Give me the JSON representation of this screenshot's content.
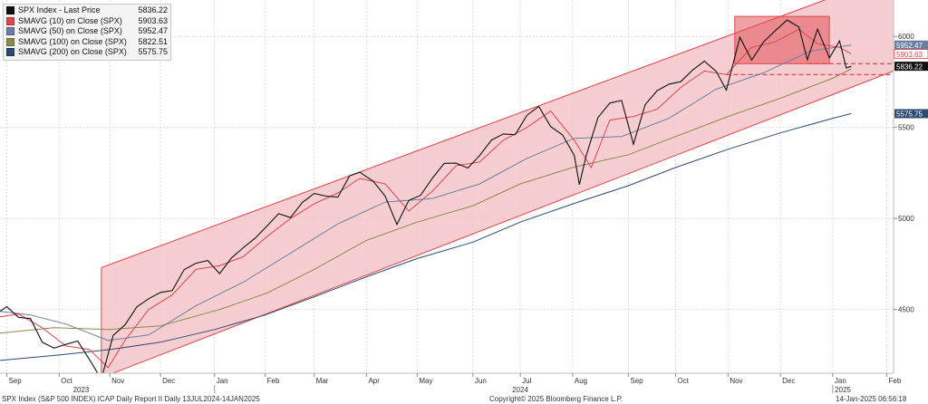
{
  "chart_data": {
    "type": "line",
    "title": "",
    "xlabel": "",
    "ylabel": "",
    "ylim": [
      4150,
      6200
    ],
    "x_range": [
      "2023-08-28",
      "2025-02-07"
    ],
    "grid": true,
    "legend_position": "top-left",
    "y_ticks": [
      4500,
      5000,
      5500,
      6000
    ],
    "x_ticks": [
      {
        "label": "Sep",
        "date": "2023-09-01"
      },
      {
        "label": "Oct",
        "date": "2023-10-02"
      },
      {
        "label": "Nov",
        "date": "2023-11-01"
      },
      {
        "label": "Dec",
        "date": "2023-12-01"
      },
      {
        "label": "Jan",
        "date": "2024-01-02"
      },
      {
        "label": "Feb",
        "date": "2024-02-01"
      },
      {
        "label": "Mar",
        "date": "2024-03-01"
      },
      {
        "label": "Apr",
        "date": "2024-04-01"
      },
      {
        "label": "May",
        "date": "2024-05-01"
      },
      {
        "label": "Jun",
        "date": "2024-06-03"
      },
      {
        "label": "Jul",
        "date": "2024-07-01"
      },
      {
        "label": "Aug",
        "date": "2024-08-01"
      },
      {
        "label": "Sep",
        "date": "2024-09-03"
      },
      {
        "label": "Oct",
        "date": "2024-10-01"
      },
      {
        "label": "Nov",
        "date": "2024-11-01"
      },
      {
        "label": "Dec",
        "date": "2024-12-02"
      },
      {
        "label": "Jan",
        "date": "2025-01-02"
      },
      {
        "label": "Feb",
        "date": "2025-02-03"
      }
    ],
    "year_labels": [
      {
        "label": "2023",
        "date": "2023-10-15"
      },
      {
        "label": "2024",
        "date": "2024-07-01"
      },
      {
        "label": "2025",
        "date": "2025-01-08"
      }
    ],
    "legend": [
      {
        "name": "SPX Index - Last Price",
        "value": "5836.22",
        "color": "#111111"
      },
      {
        "name": "SMAVG (10)  on Close (SPX)",
        "value": "5903.63",
        "color": "#e0454b"
      },
      {
        "name": "SMAVG (50)  on Close (SPX)",
        "value": "5952.47",
        "color": "#6a7f9e"
      },
      {
        "name": "SMAVG (100)  on Close (SPX)",
        "value": "5822.51",
        "color": "#8a8a4a"
      },
      {
        "name": "SMAVG (200)  on Close (SPX)",
        "value": "5575.75",
        "color": "#2d4a73"
      }
    ],
    "value_tags": [
      {
        "value": "5952.47",
        "y": 5952.47,
        "bg": "#6a7f9e",
        "fg": "#ffffff"
      },
      {
        "value": "5903.63",
        "y": 5903.63,
        "bg": "#ffffff",
        "fg": "#e0454b",
        "border": "#e0454b"
      },
      {
        "value": "5836.22",
        "y": 5836.22,
        "bg": "#111111",
        "fg": "#ffffff"
      },
      {
        "value": "5575.75",
        "y": 5575.75,
        "bg": "#2d4a73",
        "fg": "#ffffff"
      }
    ],
    "channel": {
      "upper": [
        {
          "x": "2023-10-27",
          "y": 4730
        },
        {
          "x": "2025-01-06",
          "y": 6230
        }
      ],
      "lower": [
        {
          "x": "2023-10-27",
          "y": 4125
        },
        {
          "x": "2025-02-07",
          "y": 5810
        }
      ],
      "fill": "#f4c6c9",
      "stroke": "#e0454b"
    },
    "consolidation_box": {
      "x0": "2024-11-05",
      "x1": "2024-12-31",
      "y0": 5850,
      "y1": 6110,
      "fill": "#e0454b"
    },
    "dashed_levels": [
      {
        "y": 5850,
        "x0": "2024-12-18",
        "x1": "2025-02-07"
      },
      {
        "y": 5790,
        "x0": "2024-10-31",
        "x1": "2025-02-07"
      }
    ],
    "series": [
      {
        "name": "SPX Index - Last Price",
        "color": "#111111",
        "points": [
          [
            "2023-08-28",
            4490
          ],
          [
            "2023-09-01",
            4515
          ],
          [
            "2023-09-08",
            4457
          ],
          [
            "2023-09-15",
            4450
          ],
          [
            "2023-09-22",
            4320
          ],
          [
            "2023-09-29",
            4288
          ],
          [
            "2023-10-06",
            4308
          ],
          [
            "2023-10-13",
            4327
          ],
          [
            "2023-10-20",
            4224
          ],
          [
            "2023-10-27",
            4117
          ],
          [
            "2023-11-03",
            4358
          ],
          [
            "2023-11-10",
            4415
          ],
          [
            "2023-11-17",
            4514
          ],
          [
            "2023-11-24",
            4559
          ],
          [
            "2023-12-01",
            4594
          ],
          [
            "2023-12-08",
            4604
          ],
          [
            "2023-12-15",
            4719
          ],
          [
            "2023-12-22",
            4754
          ],
          [
            "2023-12-29",
            4769
          ],
          [
            "2024-01-05",
            4697
          ],
          [
            "2024-01-12",
            4783
          ],
          [
            "2024-01-19",
            4839
          ],
          [
            "2024-01-26",
            4891
          ],
          [
            "2024-02-02",
            4958
          ],
          [
            "2024-02-09",
            5026
          ],
          [
            "2024-02-16",
            5005
          ],
          [
            "2024-02-23",
            5088
          ],
          [
            "2024-03-01",
            5137
          ],
          [
            "2024-03-08",
            5123
          ],
          [
            "2024-03-15",
            5117
          ],
          [
            "2024-03-22",
            5234
          ],
          [
            "2024-03-28",
            5254
          ],
          [
            "2024-04-05",
            5204
          ],
          [
            "2024-04-12",
            5123
          ],
          [
            "2024-04-19",
            4967
          ],
          [
            "2024-04-26",
            5099
          ],
          [
            "2024-05-03",
            5127
          ],
          [
            "2024-05-10",
            5222
          ],
          [
            "2024-05-17",
            5303
          ],
          [
            "2024-05-24",
            5304
          ],
          [
            "2024-05-31",
            5277
          ],
          [
            "2024-06-07",
            5346
          ],
          [
            "2024-06-14",
            5431
          ],
          [
            "2024-06-21",
            5464
          ],
          [
            "2024-06-28",
            5460
          ],
          [
            "2024-07-05",
            5567
          ],
          [
            "2024-07-12",
            5615
          ],
          [
            "2024-07-19",
            5505
          ],
          [
            "2024-07-26",
            5459
          ],
          [
            "2024-08-02",
            5346
          ],
          [
            "2024-08-05",
            5186
          ],
          [
            "2024-08-09",
            5344
          ],
          [
            "2024-08-16",
            5554
          ],
          [
            "2024-08-23",
            5634
          ],
          [
            "2024-08-30",
            5648
          ],
          [
            "2024-09-06",
            5408
          ],
          [
            "2024-09-13",
            5626
          ],
          [
            "2024-09-20",
            5702
          ],
          [
            "2024-09-27",
            5738
          ],
          [
            "2024-10-04",
            5751
          ],
          [
            "2024-10-11",
            5815
          ],
          [
            "2024-10-18",
            5864
          ],
          [
            "2024-10-25",
            5808
          ],
          [
            "2024-10-31",
            5705
          ],
          [
            "2024-11-08",
            5995
          ],
          [
            "2024-11-15",
            5870
          ],
          [
            "2024-11-22",
            5969
          ],
          [
            "2024-11-29",
            6032
          ],
          [
            "2024-12-06",
            6090
          ],
          [
            "2024-12-13",
            6051
          ],
          [
            "2024-12-18",
            5872
          ],
          [
            "2024-12-24",
            6040
          ],
          [
            "2024-12-31",
            5882
          ],
          [
            "2025-01-06",
            5975
          ],
          [
            "2025-01-10",
            5827
          ],
          [
            "2025-01-13",
            5836
          ]
        ]
      },
      {
        "name": "SMAVG (10)  on Close (SPX)",
        "color": "#e0454b",
        "points": [
          [
            "2023-08-28",
            4460
          ],
          [
            "2023-09-08",
            4475
          ],
          [
            "2023-09-22",
            4400
          ],
          [
            "2023-10-06",
            4300
          ],
          [
            "2023-10-20",
            4280
          ],
          [
            "2023-10-31",
            4180
          ],
          [
            "2023-11-10",
            4330
          ],
          [
            "2023-11-24",
            4500
          ],
          [
            "2023-12-08",
            4580
          ],
          [
            "2023-12-22",
            4720
          ],
          [
            "2024-01-05",
            4740
          ],
          [
            "2024-01-19",
            4790
          ],
          [
            "2024-02-02",
            4900
          ],
          [
            "2024-02-16",
            5000
          ],
          [
            "2024-03-01",
            5080
          ],
          [
            "2024-03-15",
            5140
          ],
          [
            "2024-03-28",
            5220
          ],
          [
            "2024-04-12",
            5190
          ],
          [
            "2024-04-26",
            5040
          ],
          [
            "2024-05-10",
            5150
          ],
          [
            "2024-05-24",
            5290
          ],
          [
            "2024-06-07",
            5310
          ],
          [
            "2024-06-21",
            5430
          ],
          [
            "2024-07-05",
            5500
          ],
          [
            "2024-07-19",
            5590
          ],
          [
            "2024-08-02",
            5430
          ],
          [
            "2024-08-12",
            5280
          ],
          [
            "2024-08-23",
            5540
          ],
          [
            "2024-09-06",
            5560
          ],
          [
            "2024-09-20",
            5600
          ],
          [
            "2024-10-04",
            5720
          ],
          [
            "2024-10-18",
            5810
          ],
          [
            "2024-10-31",
            5790
          ],
          [
            "2024-11-15",
            5940
          ],
          [
            "2024-11-29",
            5970
          ],
          [
            "2024-12-13",
            6040
          ],
          [
            "2024-12-24",
            5960
          ],
          [
            "2025-01-06",
            5940
          ],
          [
            "2025-01-13",
            5904
          ]
        ]
      },
      {
        "name": "SMAVG (50)  on Close (SPX)",
        "color": "#6a7f9e",
        "points": [
          [
            "2023-08-28",
            4490
          ],
          [
            "2023-09-15",
            4470
          ],
          [
            "2023-10-06",
            4420
          ],
          [
            "2023-10-31",
            4330
          ],
          [
            "2023-11-24",
            4360
          ],
          [
            "2023-12-22",
            4520
          ],
          [
            "2024-01-19",
            4650
          ],
          [
            "2024-02-16",
            4810
          ],
          [
            "2024-03-15",
            4970
          ],
          [
            "2024-04-12",
            5090
          ],
          [
            "2024-05-10",
            5110
          ],
          [
            "2024-06-07",
            5190
          ],
          [
            "2024-07-05",
            5330
          ],
          [
            "2024-08-02",
            5440
          ],
          [
            "2024-08-30",
            5450
          ],
          [
            "2024-09-27",
            5550
          ],
          [
            "2024-10-25",
            5710
          ],
          [
            "2024-11-22",
            5800
          ],
          [
            "2024-12-20",
            5920
          ],
          [
            "2025-01-13",
            5952
          ]
        ]
      },
      {
        "name": "SMAVG (100)  on Close (SPX)",
        "color": "#8a8a4a",
        "points": [
          [
            "2023-08-28",
            4370
          ],
          [
            "2023-09-29",
            4400
          ],
          [
            "2023-10-31",
            4390
          ],
          [
            "2023-12-01",
            4410
          ],
          [
            "2024-01-05",
            4500
          ],
          [
            "2024-02-02",
            4590
          ],
          [
            "2024-03-01",
            4720
          ],
          [
            "2024-04-01",
            4880
          ],
          [
            "2024-05-01",
            4980
          ],
          [
            "2024-06-03",
            5070
          ],
          [
            "2024-07-01",
            5190
          ],
          [
            "2024-08-01",
            5280
          ],
          [
            "2024-09-03",
            5350
          ],
          [
            "2024-10-01",
            5450
          ],
          [
            "2024-11-01",
            5560
          ],
          [
            "2024-12-02",
            5660
          ],
          [
            "2025-01-02",
            5770
          ],
          [
            "2025-01-13",
            5822
          ]
        ]
      },
      {
        "name": "SMAVG (200)  on Close (SPX)",
        "color": "#2d4a73",
        "points": [
          [
            "2023-08-28",
            4220
          ],
          [
            "2023-10-02",
            4250
          ],
          [
            "2023-11-01",
            4280
          ],
          [
            "2023-12-01",
            4320
          ],
          [
            "2024-01-02",
            4390
          ],
          [
            "2024-02-01",
            4470
          ],
          [
            "2024-03-01",
            4570
          ],
          [
            "2024-04-01",
            4680
          ],
          [
            "2024-05-01",
            4780
          ],
          [
            "2024-06-03",
            4870
          ],
          [
            "2024-07-01",
            4980
          ],
          [
            "2024-08-01",
            5080
          ],
          [
            "2024-09-03",
            5180
          ],
          [
            "2024-10-01",
            5280
          ],
          [
            "2024-11-01",
            5380
          ],
          [
            "2024-12-02",
            5470
          ],
          [
            "2025-01-02",
            5550
          ],
          [
            "2025-01-13",
            5576
          ]
        ]
      }
    ]
  },
  "footer": {
    "left": "SPX Index (S&P 500 INDEX) ICAP Daily Report II  Daily 13JUL2024-14JAN2025",
    "center": "Copyright© 2025 Bloomberg Finance L.P.",
    "right": "14-Jan-2025 06:56:18"
  }
}
